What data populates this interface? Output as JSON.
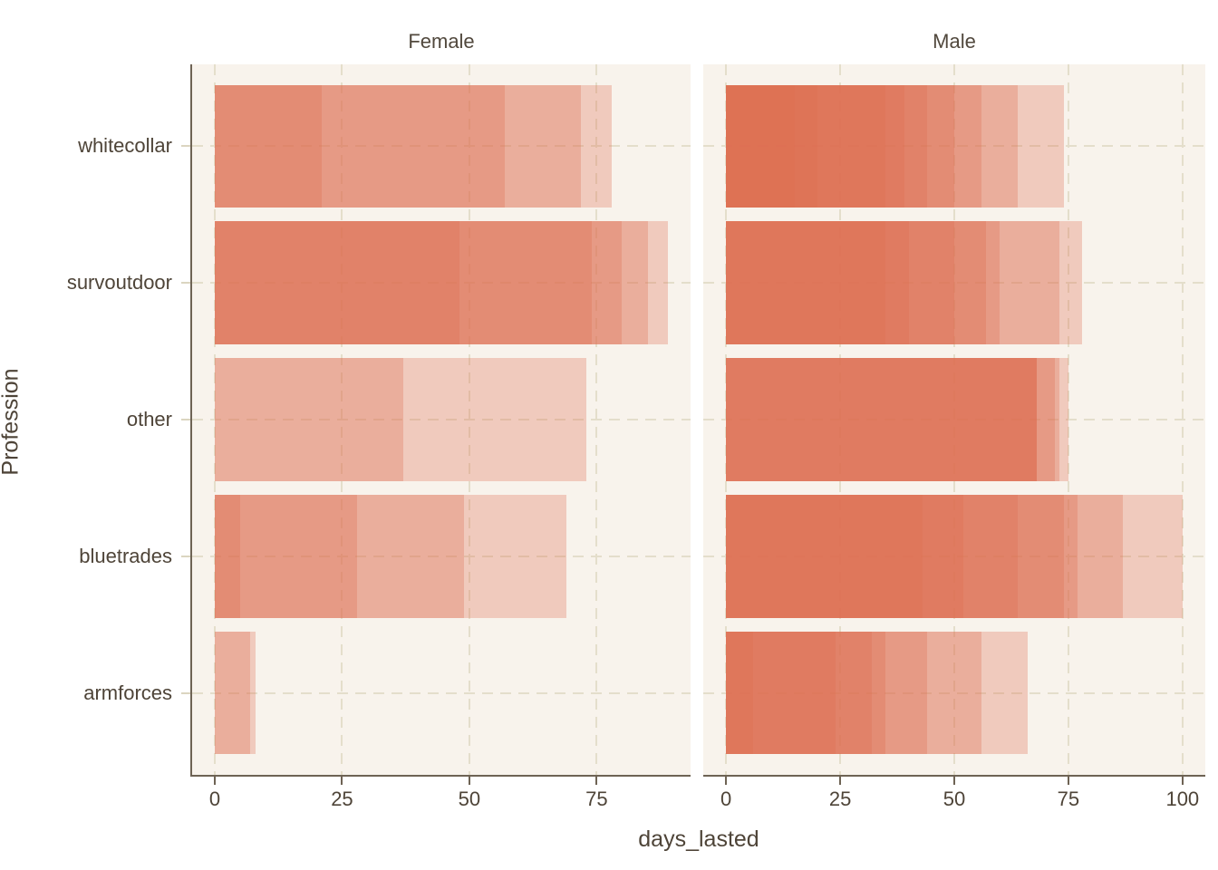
{
  "style": {
    "background": "#ffffff",
    "panel_background": "#f8f3ec",
    "grid_color": "#e4decb",
    "axis_line_color": "#6e6354",
    "text_color": "#4e4438",
    "bar_color": "#dd6e50",
    "bar_alpha": 0.3
  },
  "chart_data": {
    "type": "bar",
    "orientation": "horizontal",
    "style_note": "overlapping translucent bars (one per observation), alpha-stacked; faceted by sex; dashed major grid on cream panels",
    "xlabel": "days_lasted",
    "ylabel": "Profession",
    "categories": [
      "whitecollar",
      "survoutdoor",
      "other",
      "bluetrades",
      "armforces"
    ],
    "facets": [
      {
        "label": "Female",
        "x_ticks": [
          0,
          25,
          50,
          75
        ],
        "x_range_shown": [
          -4.5,
          93.5
        ],
        "values": {
          "whitecollar": [
            21,
            57,
            72,
            78
          ],
          "survoutdoor": [
            48,
            74,
            80,
            85,
            89
          ],
          "other": [
            37,
            73
          ],
          "bluetrades": [
            5,
            28,
            49,
            69
          ],
          "armforces": [
            7,
            8
          ]
        }
      },
      {
        "label": "Male",
        "x_ticks": [
          0,
          25,
          50,
          75,
          100
        ],
        "x_range_shown": [
          -5,
          105.5
        ],
        "values": {
          "whitecollar": [
            15,
            20,
            35,
            39,
            44,
            50,
            56,
            64,
            74
          ],
          "survoutdoor": [
            35,
            40,
            50,
            57,
            60,
            73,
            78
          ],
          "other": [
            68,
            68,
            68,
            72,
            73,
            75
          ],
          "bluetrades": [
            43,
            52,
            64,
            74,
            77,
            87,
            100
          ],
          "armforces": [
            6,
            24,
            32,
            35,
            44,
            56,
            66
          ]
        }
      }
    ]
  }
}
